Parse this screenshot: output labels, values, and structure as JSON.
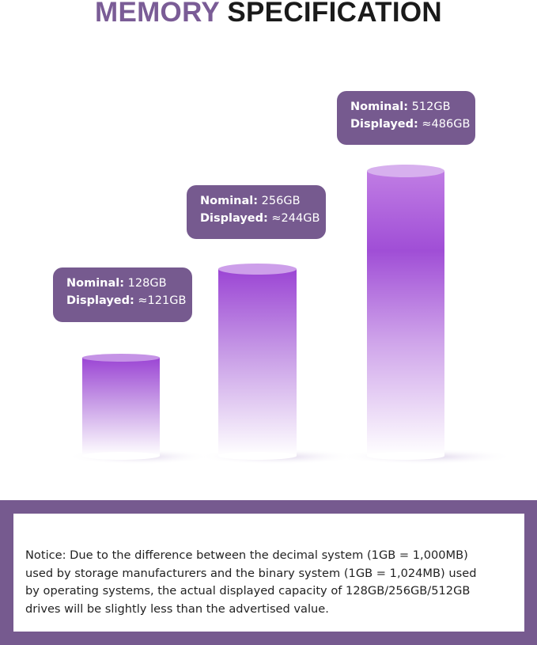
{
  "title": {
    "part1": "MEMORY",
    "part2": "SPECIFICATION"
  },
  "colors": {
    "accent": "#765a8f",
    "title_accent": "#7a5c96",
    "cylinder_top": "#9b45d4"
  },
  "bars": [
    {
      "nominal_label": "Nominal:",
      "nominal_value": "128GB",
      "displayed_label": "Displayed:",
      "displayed_value": "≈121GB"
    },
    {
      "nominal_label": "Nominal:",
      "nominal_value": "256GB",
      "displayed_label": "Displayed:",
      "displayed_value": "≈244GB"
    },
    {
      "nominal_label": "Nominal:",
      "nominal_value": "512GB",
      "displayed_label": "Displayed:",
      "displayed_value": "≈486GB"
    }
  ],
  "notice": {
    "lines": [
      "Notice: Due to the difference between the decimal system (1GB = 1,000MB)",
      "used by storage manufacturers and the binary system (1GB = 1,024MB) used",
      "by operating systems, the actual displayed capacity of 128GB/256GB/512GB",
      "drives will be slightly less than the advertised value."
    ]
  }
}
